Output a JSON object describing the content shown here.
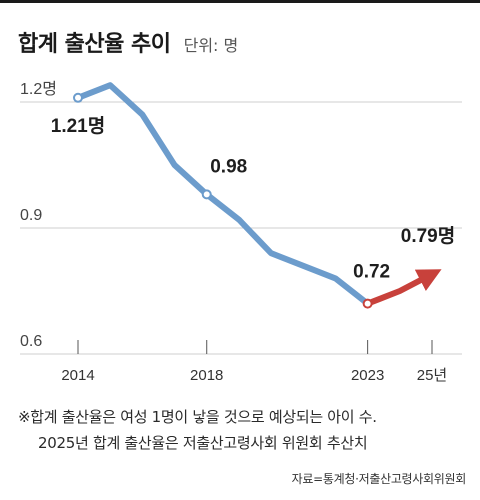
{
  "title": "합계 출산율 추이",
  "unit_label": "단위: 명",
  "chart_data": {
    "type": "line",
    "title": "합계 출산율 추이",
    "unit": "명",
    "x": [
      2014,
      2015,
      2016,
      2017,
      2018,
      2019,
      2020,
      2021,
      2022,
      2023,
      2024,
      2025
    ],
    "series": [
      {
        "segment": "actual",
        "color": "#6c9ccc",
        "x": [
          2014,
          2015,
          2016,
          2017,
          2018,
          2019,
          2020,
          2021,
          2022,
          2023
        ],
        "values": [
          1.21,
          1.24,
          1.17,
          1.05,
          0.98,
          0.92,
          0.84,
          0.81,
          0.78,
          0.72
        ]
      },
      {
        "segment": "estimate",
        "color": "#c8413b",
        "x": [
          2023,
          2024,
          2025
        ],
        "values": [
          0.72,
          0.75,
          0.79
        ]
      }
    ],
    "ylim": [
      0.6,
      1.2
    ],
    "yticks": [
      {
        "value": 1.2,
        "label": "1.2명"
      },
      {
        "value": 0.9,
        "label": "0.9"
      },
      {
        "value": 0.6,
        "label": "0.6"
      }
    ],
    "xticks": [
      {
        "value": 2014,
        "label": "2014"
      },
      {
        "value": 2018,
        "label": "2018"
      },
      {
        "value": 2023,
        "label": "2023"
      },
      {
        "value": 2025,
        "label": "25년"
      }
    ],
    "annotations": [
      {
        "x": 2014,
        "value": 1.21,
        "label": "1.21명"
      },
      {
        "x": 2018,
        "value": 0.98,
        "label": "0.98"
      },
      {
        "x": 2023,
        "value": 0.72,
        "label": "0.72"
      },
      {
        "x": 2025,
        "value": 0.79,
        "label": "0.79명"
      }
    ],
    "grid": true
  },
  "footnote": {
    "line1": "※합계 출산율은 여성 1명이 낳을 것으로 예상되는 아이 수.",
    "line2": "2025년 합계 출산율은 저출산고령사회 위원회 추산치"
  },
  "source": "자료=통계청·저출산고령사회위원회"
}
